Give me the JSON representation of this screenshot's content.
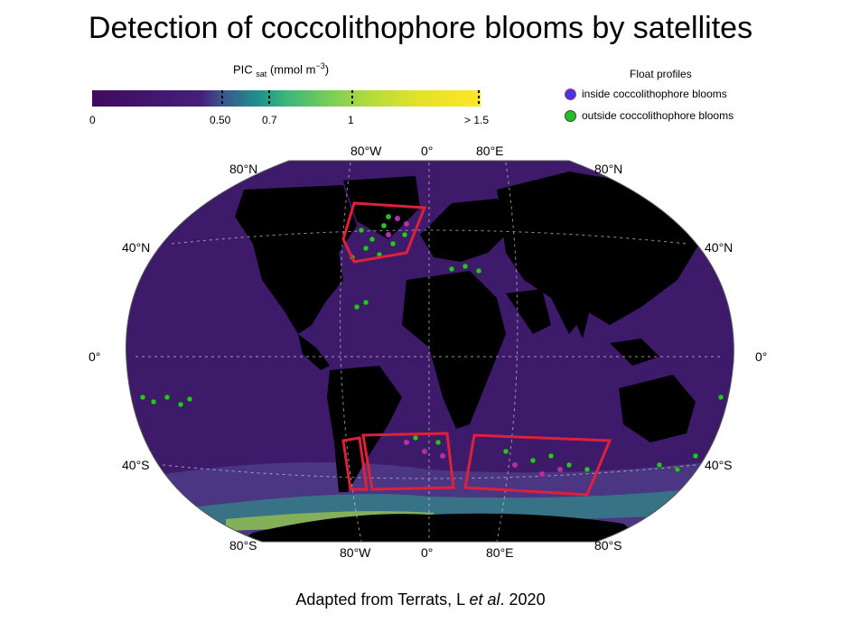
{
  "title": "Detection of coccolithophore blooms by satellites",
  "colorbar": {
    "label_main": "PIC",
    "label_sub": "sat",
    "label_unit": "(mmol m",
    "label_exp": "−3",
    "label_close": ")",
    "ticks": [
      "0",
      "0.50",
      "0.7",
      "1",
      "> 1.5"
    ],
    "tick_values": [
      0,
      0.5,
      0.7,
      1.0,
      1.5
    ],
    "colors": [
      "#3f0b5e",
      "#472d7b",
      "#3b528b",
      "#2c728e",
      "#21918c",
      "#28ae80",
      "#5ec962",
      "#addc30",
      "#fde725"
    ]
  },
  "legend": {
    "title": "Float profiles",
    "items": [
      {
        "label": "inside coccolithophore blooms",
        "color": "#3a3adf"
      },
      {
        "label": "outside coccolithophore blooms",
        "color": "#22c022"
      }
    ]
  },
  "map": {
    "ocean_color": "#3d1a6a",
    "land_color": "#000000",
    "region_color": "#e0203a",
    "float_inside_color": "#cc2a8a",
    "float_outside_color": "#2dc02d",
    "lat_labels": [
      "80°N",
      "40°N",
      "0°",
      "40°S",
      "80°S"
    ],
    "lon_labels_top": [
      "80°W",
      "0°",
      "80°E"
    ],
    "lon_labels_bottom": [
      "80°W",
      "0°",
      "80°E"
    ]
  },
  "credit": {
    "prefix": "Adapted from Terrats, L ",
    "italic": "et al",
    "suffix": ". 2020"
  }
}
